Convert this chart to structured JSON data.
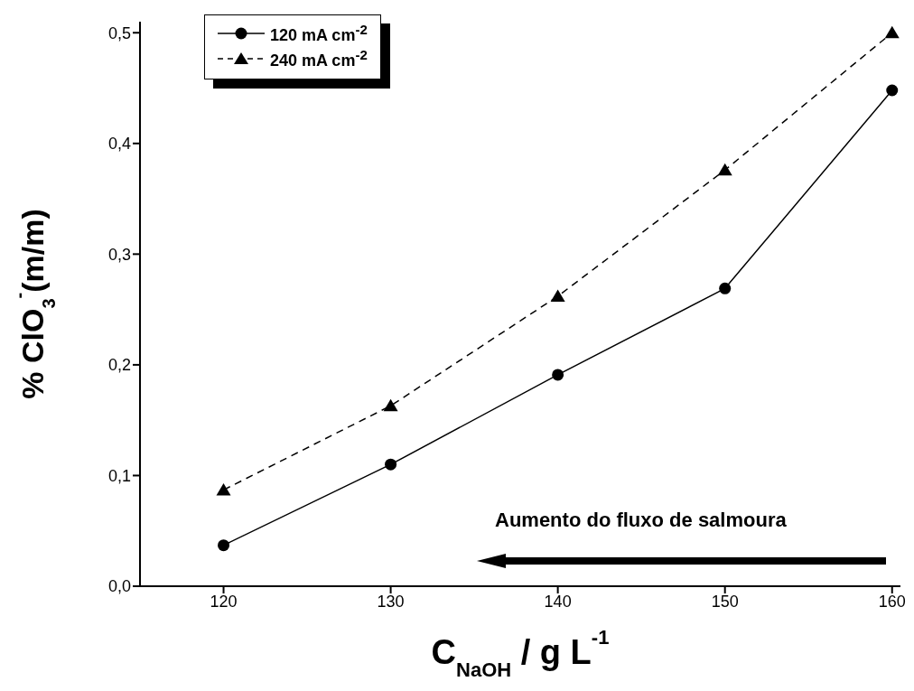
{
  "chart_data": {
    "type": "line",
    "xlabel": "C$_{NaOH}$ / g L$^{-1}$",
    "ylabel": "% ClO$_{3}$$^{-}$(m/m)",
    "x": [
      120,
      130,
      140,
      150,
      160
    ],
    "series": [
      {
        "name": "120 mA cm$^{-2}$",
        "color": "#000000",
        "values": [
          0.037,
          0.11,
          0.191,
          0.269,
          0.448
        ],
        "marker": "circle",
        "line_style": "solid"
      },
      {
        "name": "240 mA cm$^{-2}$",
        "color": "#000000",
        "values": [
          0.087,
          0.163,
          0.262,
          0.376,
          0.5
        ],
        "marker": "triangle",
        "line_style": "dashed"
      }
    ],
    "xlim": [
      115,
      160.5
    ],
    "xticks": [
      120,
      130,
      140,
      150,
      160
    ],
    "ylim": [
      0,
      0.51
    ],
    "yticks": [
      {
        "value": 0,
        "label": "0,0"
      },
      {
        "value": 0.1,
        "label": "0,1"
      },
      {
        "value": 0.2,
        "label": "0,2"
      },
      {
        "value": 0.3,
        "label": "0,3"
      },
      {
        "value": 0.4,
        "label": "0,4"
      },
      {
        "value": 0.5,
        "label": "0,5"
      }
    ],
    "legend": "top left",
    "grid": false,
    "annotations": [
      "Aumento do fluxo de salmoura"
    ]
  }
}
